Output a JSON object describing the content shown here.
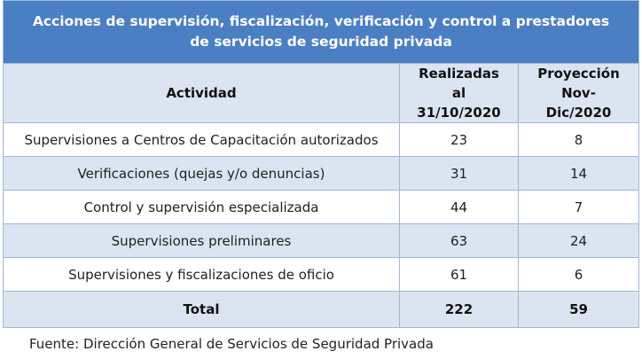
{
  "table": {
    "title": "Acciones de supervisión, fiscalización, verificación y control a prestadores de servicios de seguridad privada",
    "headers": {
      "activity": "Actividad",
      "done": "Realizadas al 31/10/2020",
      "projection": "Proyección Nov-Dic/2020"
    },
    "rows": [
      {
        "activity": "Supervisiones a Centros de Capacitación autorizados",
        "done": "23",
        "projection": "8"
      },
      {
        "activity": "Verificaciones (quejas y/o denuncias)",
        "done": "31",
        "projection": "14"
      },
      {
        "activity": "Control y supervisión especializada",
        "done": "44",
        "projection": "7"
      },
      {
        "activity": "Supervisiones preliminares",
        "done": "63",
        "projection": "24"
      },
      {
        "activity": "Supervisiones y fiscalizaciones de oficio",
        "done": "61",
        "projection": "6"
      }
    ],
    "total": {
      "label": "Total",
      "done": "222",
      "projection": "59"
    }
  },
  "source": "Fuente: Dirección General de Servicios de Seguridad Privada",
  "colors": {
    "title_bg": "#4a7fc4",
    "band_bg": "#dbe5f1",
    "border": "#9fb7d6"
  }
}
